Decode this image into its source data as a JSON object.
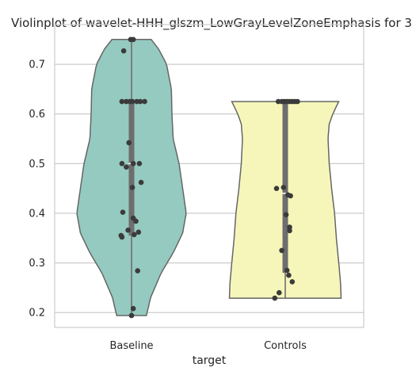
{
  "chart_data": {
    "type": "violin",
    "title": "Violinplot of wavelet-HHH_glszm_LowGrayLevelZoneEmphasis for 3",
    "xlabel": "target",
    "ylabel": "",
    "categories": [
      "Baseline",
      "Controls"
    ],
    "ylim": [
      0.17,
      0.78
    ],
    "yticks": [
      0.2,
      0.3,
      0.4,
      0.5,
      0.6,
      0.7
    ],
    "grid": "horizontal",
    "colors": {
      "Baseline": "#95cac0",
      "Controls": "#f6f6bb",
      "outline": "#666666",
      "points": "#3b3b3b",
      "box": "#6e6e6e",
      "median": "#ffffff"
    },
    "violins": [
      {
        "name": "Baseline",
        "min": 0.194,
        "max": 0.75,
        "q1": 0.355,
        "median": 0.5,
        "q3": 0.625,
        "profile": [
          [
            0.194,
            0.25
          ],
          [
            0.23,
            0.32
          ],
          [
            0.28,
            0.5
          ],
          [
            0.32,
            0.7
          ],
          [
            0.36,
            0.86
          ],
          [
            0.4,
            0.92
          ],
          [
            0.45,
            0.86
          ],
          [
            0.5,
            0.8
          ],
          [
            0.55,
            0.7
          ],
          [
            0.6,
            0.68
          ],
          [
            0.65,
            0.67
          ],
          [
            0.7,
            0.59
          ],
          [
            0.73,
            0.46
          ],
          [
            0.75,
            0.33
          ]
        ],
        "points": [
          0.194,
          0.208,
          0.284,
          0.352,
          0.355,
          0.357,
          0.362,
          0.366,
          0.384,
          0.39,
          0.402,
          0.452,
          0.462,
          0.493,
          0.5,
          0.5,
          0.5,
          0.542,
          0.625,
          0.625,
          0.625,
          0.625,
          0.625,
          0.625,
          0.625,
          0.727,
          0.75,
          0.75
        ]
      },
      {
        "name": "Controls",
        "min": 0.229,
        "max": 0.625,
        "q1": 0.28,
        "median": 0.44,
        "q3": 0.625,
        "profile": [
          [
            0.229,
            0.94
          ],
          [
            0.26,
            0.93
          ],
          [
            0.3,
            0.9
          ],
          [
            0.35,
            0.86
          ],
          [
            0.4,
            0.83
          ],
          [
            0.45,
            0.78
          ],
          [
            0.5,
            0.74
          ],
          [
            0.55,
            0.72
          ],
          [
            0.58,
            0.74
          ],
          [
            0.6,
            0.8
          ],
          [
            0.625,
            0.9
          ]
        ],
        "points": [
          0.229,
          0.24,
          0.262,
          0.275,
          0.285,
          0.325,
          0.365,
          0.372,
          0.397,
          0.435,
          0.437,
          0.45,
          0.452,
          0.625,
          0.625,
          0.625,
          0.625,
          0.625,
          0.625,
          0.625,
          0.625
        ]
      }
    ]
  }
}
